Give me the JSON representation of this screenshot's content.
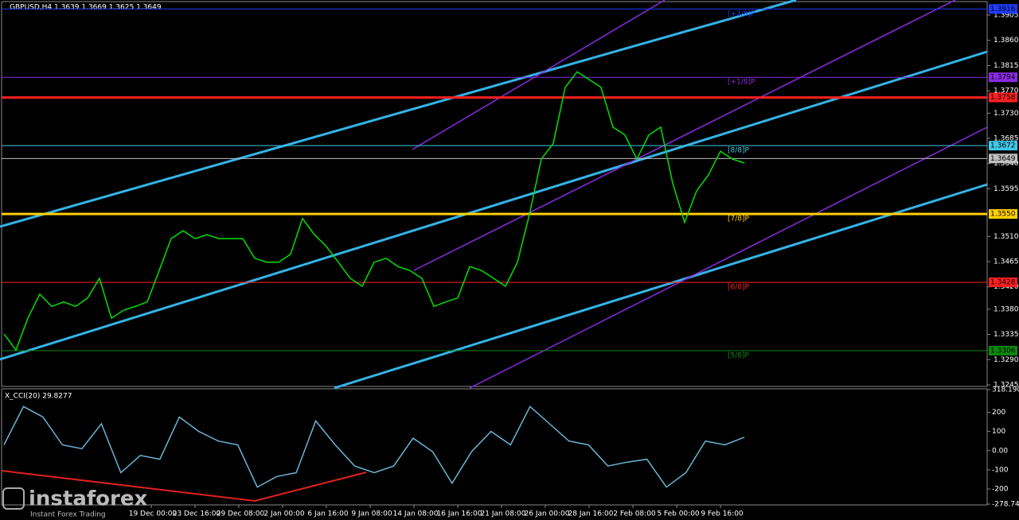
{
  "chart_data": {
    "type": "line",
    "title": "GBPUSD,H4  1.3639 1.3669 1.3625 1.3649",
    "series": [
      {
        "name": "GBPUSD",
        "color": "#00e000",
        "values": [
          1.3336,
          1.3307,
          1.3364,
          1.3407,
          1.3385,
          1.3393,
          1.3385,
          1.34,
          1.3435,
          1.3364,
          1.3378,
          1.3385,
          1.3393,
          1.3449,
          1.3506,
          1.352,
          1.3506,
          1.3513,
          1.3506,
          1.3506,
          1.3506,
          1.3471,
          1.3464,
          1.3464,
          1.3478,
          1.3542,
          1.3513,
          1.3492,
          1.3464,
          1.3435,
          1.3421,
          1.3464,
          1.3471,
          1.3456,
          1.3449,
          1.3435,
          1.3385,
          1.3393,
          1.34,
          1.3456,
          1.3449,
          1.3435,
          1.3421,
          1.3464,
          1.3549,
          1.3648,
          1.3676,
          1.3776,
          1.3804,
          1.379,
          1.3776,
          1.3705,
          1.3691,
          1.3648,
          1.3691,
          1.3705,
          1.3605,
          1.3535,
          1.3591,
          1.362,
          1.3662,
          1.3648,
          1.3641
        ]
      }
    ],
    "ylim": [
      1.3245,
      1.3905
    ],
    "yticks": [
      {
        "value": 1.3905,
        "label": "1.3905"
      },
      {
        "value": 1.386,
        "label": "1.3860"
      },
      {
        "value": 1.3815,
        "label": "1.3815"
      },
      {
        "value": 1.377,
        "label": "1.3770"
      },
      {
        "value": 1.373,
        "label": "1.3730"
      },
      {
        "value": 1.3685,
        "label": "1.3685"
      },
      {
        "value": 1.364,
        "label": "1.3640"
      },
      {
        "value": 1.3595,
        "label": "1.3595"
      },
      {
        "value": 1.351,
        "label": "1.3510"
      },
      {
        "value": 1.3465,
        "label": "1.3465"
      },
      {
        "value": 1.342,
        "label": "1.3420"
      },
      {
        "value": 1.338,
        "label": "1.3380"
      },
      {
        "value": 1.3335,
        "label": "1.3335"
      },
      {
        "value": 1.329,
        "label": "1.3290"
      },
      {
        "value": 1.3245,
        "label": "1.3245"
      }
    ],
    "levels": [
      {
        "value": 1.3916,
        "label": "1.3916",
        "murrey": "[+2/8]P",
        "color": "#1e3cff"
      },
      {
        "value": 1.3794,
        "label": "1.3794",
        "murrey": "[+1/8]P",
        "color": "#8a2be2"
      },
      {
        "value": 1.3758,
        "label": "1.3758",
        "color": "#ff2020"
      },
      {
        "value": 1.3672,
        "label": "1.3672",
        "murrey": "[8/8]P",
        "color": "#40c8e8"
      },
      {
        "value": 1.3649,
        "label": "1.3649",
        "color": "#c0c0c0"
      },
      {
        "value": 1.355,
        "label": "1.3550",
        "murrey": "[7/8]P",
        "color": "#ffd000"
      },
      {
        "value": 1.3428,
        "label": "1.3428",
        "murrey": "[6/8]P",
        "color": "#ff2020"
      },
      {
        "value": 1.3306,
        "label": "1.3306",
        "murrey": "[5/8]P",
        "color": "#0a8a0a"
      }
    ],
    "x_labels": [
      "19 Dec 00:00",
      "23 Dec 16:00",
      "29 Dec 08:00",
      "2 Jan 00:00",
      "6 Jan 16:00",
      "9 Jan 08:00",
      "14 Jan 08:00",
      "16 Jan 16:00",
      "21 Jan 08:00",
      "26 Jan 00:00",
      "28 Jan 16:00",
      "2 Feb 08:00",
      "5 Feb 00:00",
      "9 Feb 16:00"
    ],
    "indicator": {
      "type": "line",
      "title": "X_CCI(20) 29.8277",
      "color": "#6ab4d8",
      "values": [
        30,
        230,
        175,
        30,
        10,
        140,
        -115,
        -25,
        -45,
        175,
        100,
        50,
        30,
        -190,
        -135,
        -115,
        155,
        30,
        -80,
        -115,
        -80,
        65,
        -5,
        -170,
        -5,
        100,
        30,
        230,
        140,
        50,
        30,
        -80,
        -60,
        -45,
        -190,
        -115,
        50,
        30,
        70
      ],
      "ylim": [
        -278.742,
        318.1904
      ],
      "yticks": [
        -278.742,
        -200,
        -100,
        {
          "value": 0,
          "label": "0.00"
        },
        100,
        200,
        318.1904
      ]
    }
  },
  "logo": {
    "name": "instaforex",
    "tagline": "Instant Forex Trading"
  }
}
